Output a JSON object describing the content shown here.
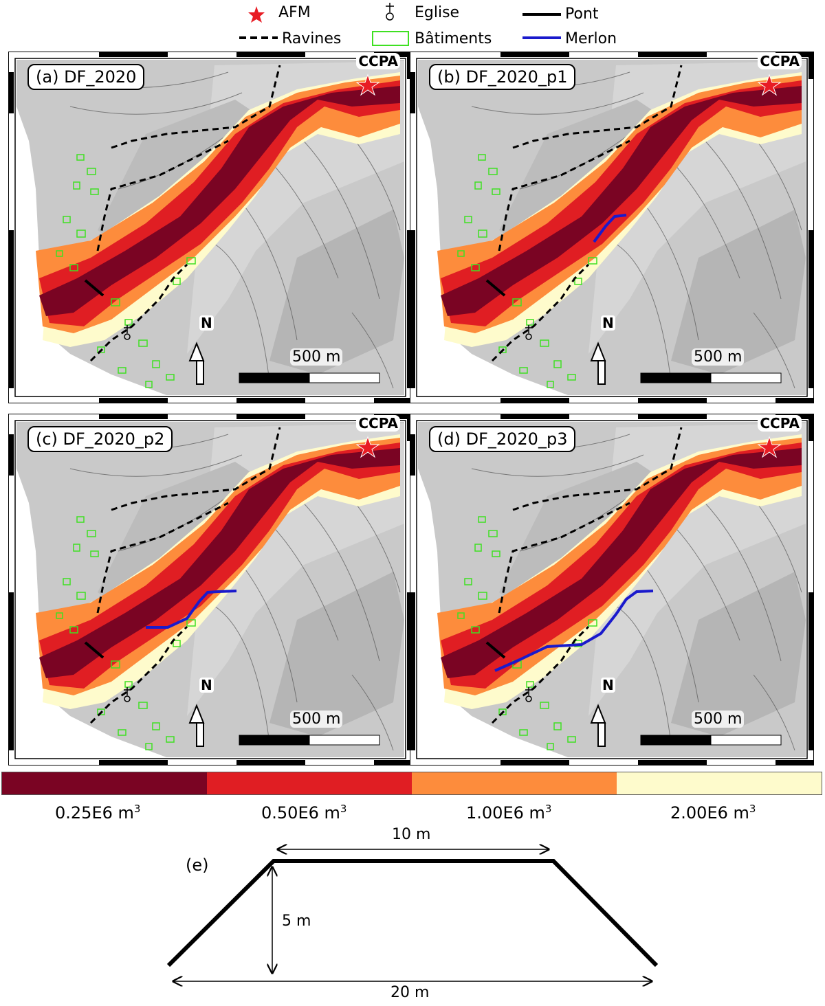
{
  "legend": {
    "afm": "AFM",
    "eglise": "Eglise",
    "pont": "Pont",
    "ravines": "Ravines",
    "batiments": "Bâtiments",
    "merlon": "Merlon"
  },
  "colors": {
    "v025": "#7a0423",
    "v050": "#e01e23",
    "v100": "#fd8c3c",
    "v200": "#fefbcc",
    "buildings": "#3fe022",
    "merlon": "#1a1acc",
    "afm_star": "#e81c24"
  },
  "panels": [
    {
      "label": "(a) DF_2020",
      "ccpa": "CCPA",
      "north": "N",
      "scale": "500 m",
      "merlon": "none"
    },
    {
      "label": "(b) DF_2020_p1",
      "ccpa": "CCPA",
      "north": "N",
      "scale": "500 m",
      "merlon": "short"
    },
    {
      "label": "(c) DF_2020_p2",
      "ccpa": "CCPA",
      "north": "N",
      "scale": "500 m",
      "merlon": "medium"
    },
    {
      "label": "(d) DF_2020_p3",
      "ccpa": "CCPA",
      "north": "N",
      "scale": "500 m",
      "merlon": "long"
    }
  ],
  "colorbar": {
    "labels": [
      "0.25E6 m",
      "0.50E6 m",
      "1.00E6 m",
      "2.00E6 m"
    ],
    "unit_sup": "3"
  },
  "diagram": {
    "label": "(e)",
    "top_width": "10 m",
    "height": "5 m",
    "base_width": "20 m"
  }
}
